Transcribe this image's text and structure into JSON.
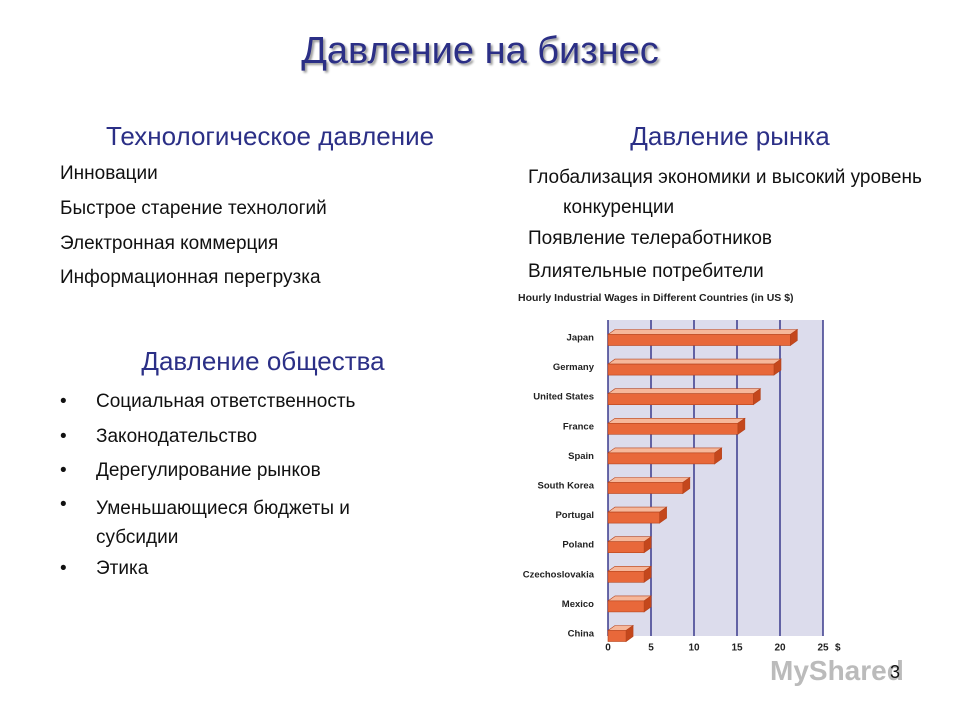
{
  "slide": {
    "title": "Давление на бизнес",
    "technology": {
      "heading": "Технологическое давление",
      "items": [
        "Инновации",
        "Быстрое старение технологий",
        "Электронная коммерция",
        "Информационная перегрузка"
      ]
    },
    "society": {
      "heading": "Давление общества",
      "items": [
        "Социальная ответственность",
        "Законодательство",
        "Дерегулирование рынков",
        "Уменьшающиеся бюджеты и субсидии",
        "Этика"
      ]
    },
    "market": {
      "heading": "Давление рынка",
      "items": [
        "Глобализация экономики и высокий уровень конкуренции",
        "Появление телеработников",
        "Влиятельные потребители"
      ]
    },
    "page_number": "3",
    "watermark": "MyShared"
  },
  "chart_data": {
    "type": "bar",
    "orientation": "horizontal",
    "title": "Hourly Industrial Wages in Different Countries (in US $)",
    "categories": [
      "Japan",
      "Germany",
      "United States",
      "France",
      "Spain",
      "South Korea",
      "Portugal",
      "Poland",
      "Czechoslovakia",
      "Mexico",
      "China"
    ],
    "values": [
      21.2,
      19.3,
      16.9,
      15.1,
      12.4,
      8.7,
      6.0,
      4.2,
      4.2,
      4.2,
      2.1
    ],
    "color": "#e8683a",
    "xlim": [
      0,
      25
    ],
    "xticks": [
      0,
      5,
      10,
      15,
      20,
      25
    ],
    "x_unit": "$",
    "grid": true
  }
}
